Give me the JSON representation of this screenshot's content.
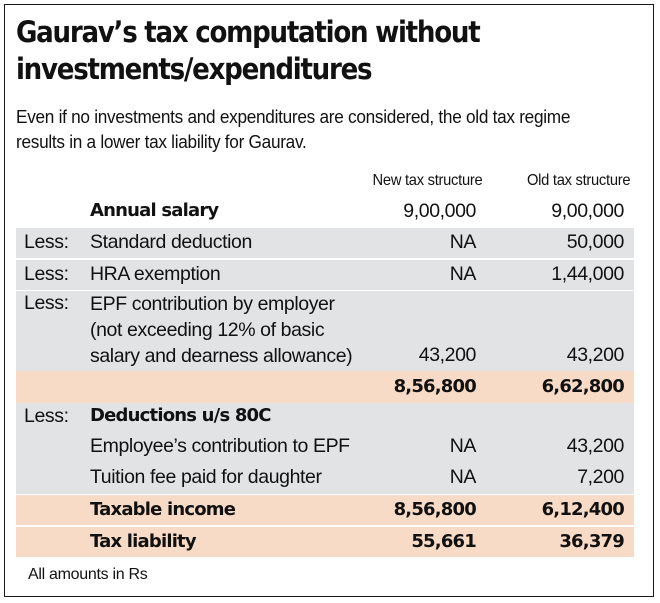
{
  "title": "Gaurav’s tax computation without\ninvestments/expenditures",
  "subtitle": "Even if no investments and expenditures are considered, the old tax regime results in a lower tax liability for Gaurav.",
  "columns": {
    "new": "New tax structure",
    "old": "Old tax structure"
  },
  "rows": [
    {
      "less": "",
      "label": "Annual salary",
      "new": "9,00,000",
      "old": "9,00,000"
    },
    {
      "less": "Less:",
      "label": "Standard deduction",
      "new": "NA",
      "old": "50,000"
    },
    {
      "less": "Less:",
      "label": "HRA exemption",
      "new": "NA",
      "old": "1,44,000"
    },
    {
      "less": "Less:",
      "label": "EPF contribution by employer\n(not exceeding 12% of basic\nsalary and dearness allowance)",
      "new": "43,200",
      "old": "43,200"
    },
    {
      "less": "",
      "label": "",
      "new": "8,56,800",
      "old": "6,62,800"
    },
    {
      "less": "Less:",
      "label": "Deductions u/s 80C",
      "new": "",
      "old": ""
    },
    {
      "less": "",
      "label": "Employee’s contribution to EPF",
      "new": "NA",
      "old": "43,200"
    },
    {
      "less": "",
      "label": "Tuition fee paid for daughter",
      "new": "NA",
      "old": "7,200"
    },
    {
      "less": "",
      "label": "Taxable income",
      "new": "8,56,800",
      "old": "6,12,400"
    },
    {
      "less": "",
      "label": "Tax liability",
      "new": "55,661",
      "old": "36,379"
    }
  ],
  "footer": "All amounts in Rs",
  "colors": {
    "gray_row": "#e2e3e5",
    "highlight_row": "#f8dbc6",
    "border": "#1a1a1a"
  }
}
